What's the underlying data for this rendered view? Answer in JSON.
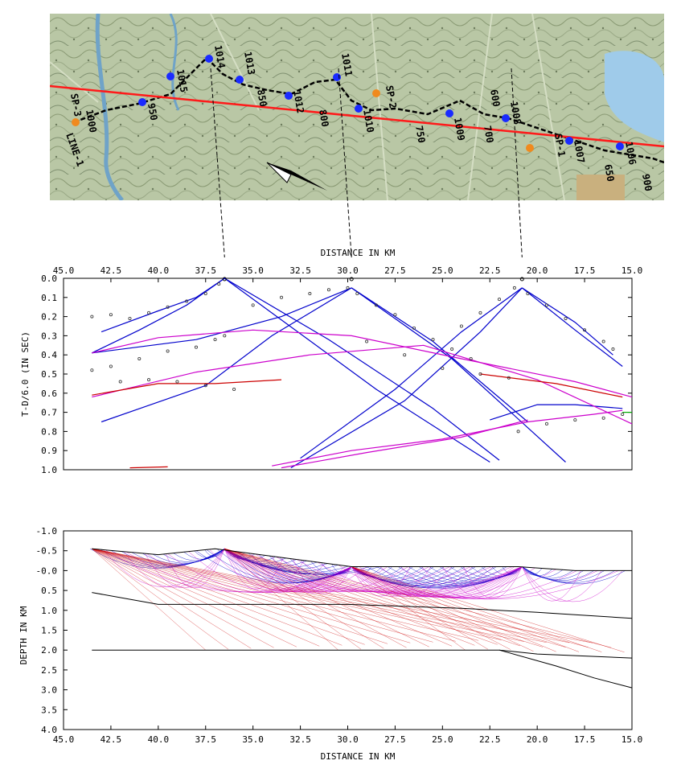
{
  "map": {
    "line_label": "LINE-1",
    "shot_labels": [
      "SP-3",
      "SP-2",
      "SP-1"
    ],
    "station_labels": [
      "1000",
      "950",
      "1015",
      "1014",
      "1013",
      "1012",
      "1011",
      "1010",
      "1009",
      "1008",
      "1007",
      "1006",
      "900",
      "850",
      "800",
      "750",
      "700",
      "650",
      "600"
    ]
  },
  "chart_data": [
    {
      "type": "scatter",
      "title": "",
      "xlabel": "DISTANCE IN KM",
      "ylabel": "T-D/6.0 (IN SEC)",
      "xlim": [
        45.0,
        15.0
      ],
      "ylim": [
        1.0,
        0.0
      ],
      "x_ticks": [
        "45.0",
        "42.5",
        "40.0",
        "37.5",
        "35.0",
        "32.5",
        "30.0",
        "27.5",
        "25.0",
        "22.5",
        "20.0",
        "17.5",
        "15.0"
      ],
      "y_ticks": [
        "0.0",
        "0.1",
        "0.2",
        "0.3",
        "0.4",
        "0.5",
        "0.6",
        "0.7",
        "0.8",
        "0.9",
        "1.0"
      ],
      "x_axis_position": "top",
      "shot_points_km": [
        36.5,
        29.8,
        20.8
      ],
      "series": [
        {
          "color": "#0000cc",
          "x": [
            43.0,
            40.0,
            38.0,
            36.5
          ],
          "y": [
            0.28,
            0.17,
            0.1,
            0.0
          ]
        },
        {
          "color": "#0000cc",
          "x": [
            43.5,
            41.0,
            38.5,
            36.5
          ],
          "y": [
            0.39,
            0.27,
            0.14,
            0.0
          ]
        },
        {
          "color": "#0000cc",
          "x": [
            36.5,
            28.5,
            22.5
          ],
          "y": [
            0.0,
            0.58,
            0.96
          ]
        },
        {
          "color": "#0000cc",
          "x": [
            36.5,
            31.0,
            25.5,
            22.0
          ],
          "y": [
            0.0,
            0.32,
            0.68,
            0.95
          ]
        },
        {
          "color": "#0000cc",
          "x": [
            43.0,
            37.5,
            34.0,
            29.8
          ],
          "y": [
            0.75,
            0.56,
            0.3,
            0.05
          ]
        },
        {
          "color": "#0000cc",
          "x": [
            43.5,
            38.0,
            33.5,
            29.8
          ],
          "y": [
            0.39,
            0.32,
            0.2,
            0.05
          ]
        },
        {
          "color": "#0000cc",
          "x": [
            29.8,
            24.5,
            18.5
          ],
          "y": [
            0.05,
            0.42,
            0.96
          ]
        },
        {
          "color": "#0000cc",
          "x": [
            29.8,
            25.5,
            20.5
          ],
          "y": [
            0.05,
            0.33,
            0.75
          ]
        },
        {
          "color": "#0000cc",
          "x": [
            33.0,
            27.0,
            23.0,
            20.8
          ],
          "y": [
            0.99,
            0.64,
            0.28,
            0.05
          ]
        },
        {
          "color": "#0000cc",
          "x": [
            32.5,
            27.5,
            24.0,
            20.8
          ],
          "y": [
            0.94,
            0.58,
            0.28,
            0.05
          ]
        },
        {
          "color": "#0000cc",
          "x": [
            20.8,
            18.0,
            16.0
          ],
          "y": [
            0.05,
            0.23,
            0.4
          ]
        },
        {
          "color": "#0000cc",
          "x": [
            20.8,
            18.0,
            15.5
          ],
          "y": [
            0.05,
            0.27,
            0.46
          ]
        },
        {
          "color": "#0000cc",
          "x": [
            22.5,
            20.0,
            18.0,
            15.5
          ],
          "y": [
            0.74,
            0.66,
            0.66,
            0.68
          ]
        },
        {
          "color": "#cc00cc",
          "x": [
            43.5,
            40.0,
            35.0,
            29.8,
            24.0,
            18.0,
            15.0
          ],
          "y": [
            0.39,
            0.31,
            0.27,
            0.3,
            0.42,
            0.54,
            0.62
          ]
        },
        {
          "color": "#cc00cc",
          "x": [
            43.5,
            38.0,
            32.0,
            26.0,
            20.0,
            15.0
          ],
          "y": [
            0.62,
            0.49,
            0.4,
            0.35,
            0.53,
            0.76
          ]
        },
        {
          "color": "#cc00cc",
          "x": [
            34.0,
            29.8,
            25.0,
            20.5,
            17.0,
            15.5
          ],
          "y": [
            0.98,
            0.9,
            0.84,
            0.75,
            0.71,
            0.69
          ]
        },
        {
          "color": "#cc00cc",
          "x": [
            33.5,
            29.0,
            24.0,
            20.5
          ],
          "y": [
            0.99,
            0.91,
            0.83,
            0.74
          ]
        },
        {
          "color": "#cc0000",
          "x": [
            43.5,
            40.0,
            37.0,
            33.5
          ],
          "y": [
            0.61,
            0.55,
            0.55,
            0.53
          ]
        },
        {
          "color": "#cc0000",
          "x": [
            23.0,
            19.0,
            15.5
          ],
          "y": [
            0.5,
            0.55,
            0.62
          ]
        },
        {
          "color": "#cc0000",
          "x": [
            41.5,
            39.5
          ],
          "y": [
            0.99,
            0.985
          ]
        },
        {
          "color": "#00aa00",
          "x": [
            15.5,
            15.0
          ],
          "y": [
            0.7,
            0.7
          ]
        }
      ],
      "picks": [
        {
          "x": [
            43.5,
            42.5,
            41.5,
            40.5,
            39.5,
            38.5,
            37.5,
            36.8
          ],
          "y": [
            0.2,
            0.19,
            0.21,
            0.18,
            0.15,
            0.12,
            0.08,
            0.03
          ]
        },
        {
          "x": [
            43.5,
            42.5,
            41.0,
            39.5,
            38.0,
            37.0,
            36.5
          ],
          "y": [
            0.48,
            0.46,
            0.42,
            0.38,
            0.36,
            0.32,
            0.3
          ]
        },
        {
          "x": [
            42.0,
            40.5,
            39.0,
            37.5,
            36.0
          ],
          "y": [
            0.54,
            0.53,
            0.54,
            0.56,
            0.58
          ]
        },
        {
          "x": [
            35.0,
            33.5,
            32.0,
            31.0,
            30.0
          ],
          "y": [
            0.14,
            0.1,
            0.08,
            0.06,
            0.05
          ]
        },
        {
          "x": [
            29.5,
            28.5,
            27.5,
            26.5,
            25.5,
            24.5,
            23.5
          ],
          "y": [
            0.08,
            0.14,
            0.19,
            0.26,
            0.32,
            0.37,
            0.42
          ]
        },
        {
          "x": [
            29.0,
            27.0,
            25.0,
            23.0,
            21.5
          ],
          "y": [
            0.33,
            0.4,
            0.47,
            0.5,
            0.52
          ]
        },
        {
          "x": [
            24.0,
            23.0,
            22.0,
            21.2
          ],
          "y": [
            0.25,
            0.18,
            0.11,
            0.05
          ]
        },
        {
          "x": [
            20.5,
            19.5,
            18.5,
            17.5,
            16.5,
            16.0
          ],
          "y": [
            0.08,
            0.14,
            0.21,
            0.27,
            0.33,
            0.37
          ]
        },
        {
          "x": [
            21.0,
            19.5,
            18.0,
            16.5,
            15.5
          ],
          "y": [
            0.8,
            0.76,
            0.74,
            0.73,
            0.71
          ]
        }
      ]
    },
    {
      "type": "line",
      "title": "",
      "xlabel": "DISTANCE IN KM",
      "ylabel": "DEPTH IN KM",
      "xlim": [
        45.0,
        15.0
      ],
      "ylim": [
        4.0,
        -1.0
      ],
      "x_ticks": [
        "45.0",
        "42.5",
        "40.0",
        "37.5",
        "35.0",
        "32.5",
        "30.0",
        "27.5",
        "25.0",
        "22.5",
        "20.0",
        "17.5",
        "15.0"
      ],
      "y_ticks": [
        "-1.0",
        "-0.5",
        "-0.0",
        "0.5",
        "1.0",
        "1.5",
        "2.0",
        "2.5",
        "3.0",
        "3.5",
        "4.0"
      ],
      "surface": {
        "x": [
          43.5,
          40.0,
          37.0,
          33.0,
          29.8,
          26.0,
          21.0,
          18.0,
          15.0
        ],
        "y": [
          -0.55,
          -0.4,
          -0.55,
          -0.3,
          -0.1,
          -0.1,
          -0.1,
          0.0,
          0.0
        ]
      },
      "interfaces": [
        {
          "name": "",
          "x": [
            43.5,
            40.0,
            36.0,
            30.0,
            24.0,
            20.0,
            15.0
          ],
          "y": [
            0.55,
            0.85,
            0.85,
            0.85,
            0.95,
            1.05,
            1.2
          ]
        },
        {
          "name": "",
          "x": [
            43.5,
            30.0,
            22.0,
            20.0,
            15.0
          ],
          "y": [
            2.0,
            2.0,
            2.0,
            2.1,
            2.2
          ]
        },
        {
          "name": "",
          "x": [
            22.0,
            19.0,
            17.0,
            15.0
          ],
          "y": [
            2.0,
            2.4,
            2.7,
            2.95
          ]
        }
      ],
      "shots": [
        {
          "x": 36.5,
          "y": -0.55
        },
        {
          "x": 29.8,
          "y": -0.1
        },
        {
          "x": 20.8,
          "y": -0.1
        }
      ],
      "ray_colors": {
        "shallow": "#0000cc",
        "middle": "#cc00cc",
        "deep": "#cc0000"
      }
    }
  ]
}
